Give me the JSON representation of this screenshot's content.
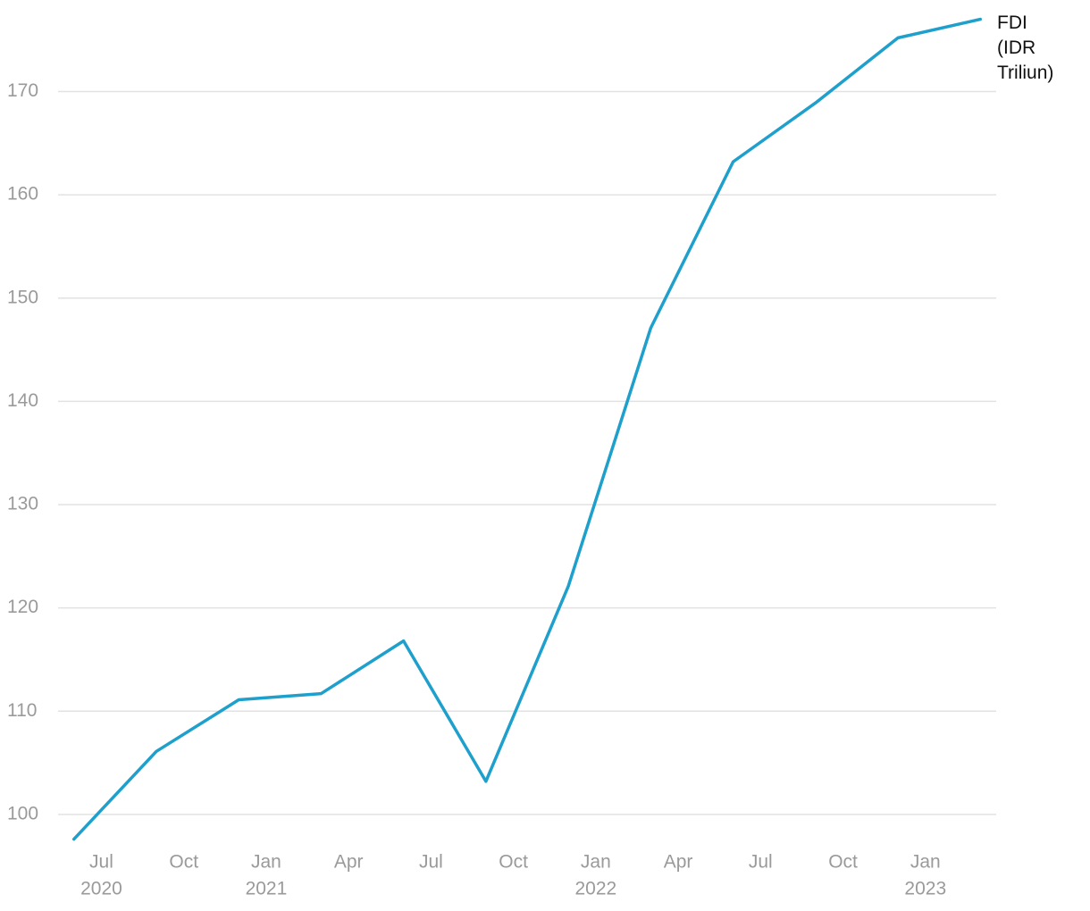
{
  "chart_data": {
    "type": "line",
    "x": [
      "2020-06",
      "2020-09",
      "2020-12",
      "2021-03",
      "2021-06",
      "2021-09",
      "2021-12",
      "2022-03",
      "2022-06",
      "2022-09",
      "2022-12",
      "2023-03"
    ],
    "series": [
      {
        "name": "FDI (IDR Triliun)",
        "color": "#1fa0cc",
        "values": [
          97.6,
          106.1,
          111.1,
          111.7,
          116.8,
          103.2,
          122.1,
          147.1,
          163.2,
          168.9,
          175.2,
          177.0
        ]
      }
    ],
    "xlim": [
      "2020-05",
      "2023-04"
    ],
    "xticks": [
      {
        "value": "2020-07",
        "label": "Jul"
      },
      {
        "value": "2020-10",
        "label": "Oct"
      },
      {
        "value": "2021-01",
        "label": "Jan"
      },
      {
        "value": "2021-04",
        "label": "Apr"
      },
      {
        "value": "2021-07",
        "label": "Jul"
      },
      {
        "value": "2021-10",
        "label": "Oct"
      },
      {
        "value": "2022-01",
        "label": "Jan"
      },
      {
        "value": "2022-04",
        "label": "Apr"
      },
      {
        "value": "2022-07",
        "label": "Jul"
      },
      {
        "value": "2022-10",
        "label": "Oct"
      },
      {
        "value": "2023-01",
        "label": "Jan"
      }
    ],
    "xtick_years": [
      {
        "value": "2020-07",
        "label": "2020"
      },
      {
        "value": "2021-01",
        "label": "2021"
      },
      {
        "value": "2022-01",
        "label": "2022"
      },
      {
        "value": "2023-01",
        "label": "2023"
      }
    ],
    "ylim": [
      96.7,
      178
    ],
    "yticks": [
      100,
      110,
      120,
      130,
      140,
      150,
      160,
      170
    ],
    "grid": true
  }
}
